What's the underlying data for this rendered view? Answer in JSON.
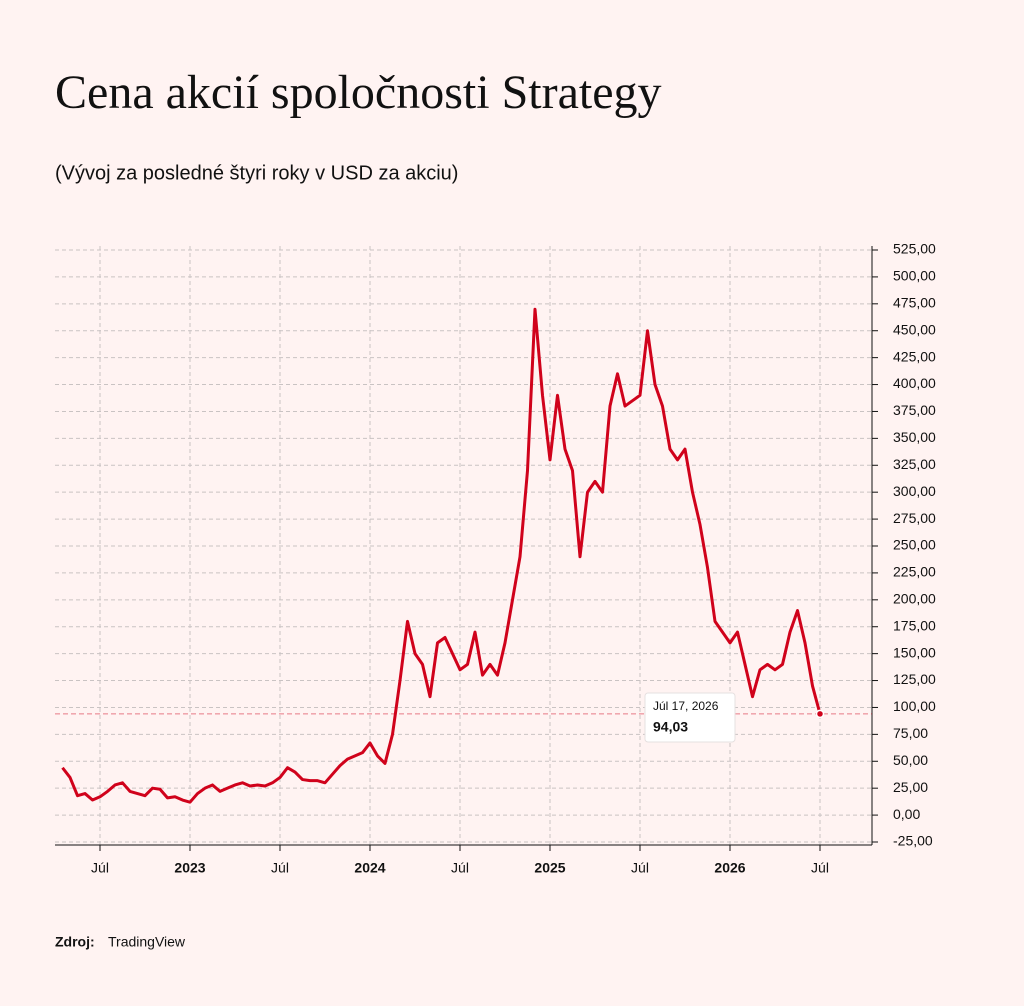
{
  "chart_data": {
    "type": "line",
    "title": "Cena akcií spoločnosti Strategy",
    "subtitle": "(Vývoj za posledné štyri roky v USD za akciu)",
    "source_label": "Zdroj:",
    "source": "TradingView",
    "annotation": {
      "date": "Júl 17, 2026",
      "value": "94,03"
    },
    "color": "#d0021b",
    "categories": [
      null,
      null,
      null,
      null,
      null,
      "Júl",
      null,
      null,
      null,
      null,
      null,
      null,
      null,
      null,
      null,
      null,
      null,
      "2023",
      null,
      null,
      null,
      null,
      null,
      null,
      null,
      null,
      null,
      null,
      null,
      "Júl",
      null,
      null,
      null,
      null,
      null,
      null,
      null,
      null,
      null,
      null,
      null,
      "2024",
      null,
      null,
      null,
      null,
      null,
      null,
      null,
      null,
      null,
      null,
      null,
      "Júl",
      null,
      null,
      null,
      null,
      null,
      null,
      null,
      null,
      null,
      null,
      null,
      "2025",
      null,
      null,
      null,
      null,
      null,
      null,
      null,
      null,
      null,
      null,
      null,
      "Júl",
      null,
      null,
      null,
      null,
      null,
      null,
      null,
      null,
      null,
      null,
      null,
      "2026",
      null,
      null,
      null,
      null,
      null,
      null,
      null,
      null,
      null,
      null,
      null,
      "Júl"
    ],
    "values": [
      44,
      35,
      18,
      20,
      14,
      17,
      22,
      28,
      30,
      22,
      20,
      18,
      25,
      24,
      16,
      17,
      14,
      12,
      20,
      25,
      28,
      22,
      25,
      28,
      30,
      27,
      28,
      27,
      30,
      35,
      44,
      40,
      33,
      32,
      32,
      30,
      38,
      46,
      52,
      55,
      58,
      67,
      55,
      48,
      75,
      125,
      180,
      150,
      140,
      110,
      160,
      165,
      150,
      135,
      140,
      170,
      130,
      140,
      130,
      160,
      200,
      240,
      320,
      470,
      390,
      330,
      390,
      340,
      320,
      240,
      300,
      310,
      300,
      380,
      410,
      380,
      385,
      390,
      450,
      400,
      380,
      340,
      330,
      340,
      300,
      270,
      230,
      180,
      170,
      160,
      170,
      140,
      110,
      135,
      140,
      135,
      140,
      170,
      190,
      160,
      120,
      94.03
    ],
    "ylim": [
      -25,
      525
    ],
    "yticks": [
      {
        "value": -25,
        "label": "-25,00"
      },
      {
        "value": 0,
        "label": "0,00"
      },
      {
        "value": 25,
        "label": "25,00"
      },
      {
        "value": 50,
        "label": "50,00"
      },
      {
        "value": 75,
        "label": "75,00"
      },
      {
        "value": 100,
        "label": "100,00"
      },
      {
        "value": 125,
        "label": "125,00"
      },
      {
        "value": 150,
        "label": "150,00"
      },
      {
        "value": 175,
        "label": "175,00"
      },
      {
        "value": 200,
        "label": "200,00"
      },
      {
        "value": 225,
        "label": "225,00"
      },
      {
        "value": 250,
        "label": "250,00"
      },
      {
        "value": 275,
        "label": "275,00"
      },
      {
        "value": 300,
        "label": "300,00"
      },
      {
        "value": 325,
        "label": "325,00"
      },
      {
        "value": 350,
        "label": "350,00"
      },
      {
        "value": 375,
        "label": "375,00"
      },
      {
        "value": 400,
        "label": "400,00"
      },
      {
        "value": 425,
        "label": "425,00"
      },
      {
        "value": 450,
        "label": "450,00"
      },
      {
        "value": 475,
        "label": "475,00"
      },
      {
        "value": 500,
        "label": "500,00"
      },
      {
        "value": 525,
        "label": "525,00"
      }
    ],
    "grid": true
  }
}
